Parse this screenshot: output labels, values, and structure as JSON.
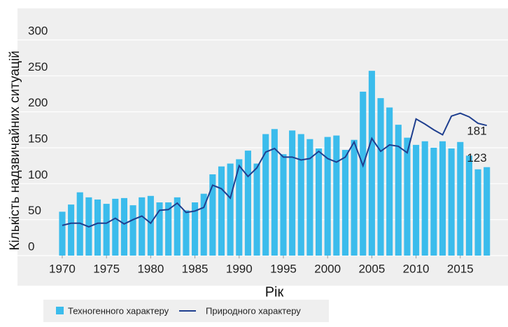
{
  "chart_data": {
    "type": "bar-line",
    "y_label": "Кількість надзвичайних ситуацій",
    "x_label": "Рік",
    "x": [
      1970,
      1971,
      1972,
      1973,
      1974,
      1975,
      1976,
      1977,
      1978,
      1979,
      1980,
      1981,
      1982,
      1983,
      1984,
      1985,
      1986,
      1987,
      1988,
      1989,
      1990,
      1991,
      1992,
      1993,
      1994,
      1995,
      1996,
      1997,
      1998,
      1999,
      2000,
      2001,
      2002,
      2003,
      2004,
      2005,
      2006,
      2007,
      2008,
      2009,
      2010,
      2011,
      2012,
      2013,
      2014,
      2015,
      2016,
      2017,
      2018
    ],
    "series": [
      {
        "name": "Техногенного характеру",
        "color": "#3bbcec",
        "kind": "bar",
        "values": [
          61,
          71,
          88,
          81,
          78,
          72,
          79,
          80,
          70,
          81,
          83,
          74,
          74,
          81,
          63,
          74,
          86,
          113,
          124,
          128,
          134,
          146,
          128,
          169,
          176,
          141,
          174,
          169,
          162,
          149,
          165,
          167,
          147,
          161,
          228,
          257,
          219,
          206,
          182,
          164,
          154,
          159,
          150,
          159,
          149,
          158,
          139,
          120,
          123
        ]
      },
      {
        "name": "Природного характеру",
        "color": "#1f3f8f",
        "kind": "line",
        "values": [
          42,
          45,
          45,
          40,
          45,
          45,
          52,
          44,
          50,
          55,
          45,
          63,
          64,
          73,
          60,
          62,
          67,
          98,
          93,
          80,
          125,
          110,
          122,
          144,
          149,
          137,
          137,
          133,
          135,
          145,
          135,
          130,
          137,
          158,
          125,
          163,
          145,
          154,
          152,
          143,
          190,
          183,
          175,
          168,
          194,
          198,
          193,
          184,
          181
        ]
      }
    ],
    "xlim": [
      1968.5,
      2020
    ],
    "xticks": [
      1970,
      1975,
      1980,
      1985,
      1990,
      1995,
      2000,
      2005,
      2010,
      2015
    ],
    "ylim": [
      0,
      300
    ],
    "yticks": [
      0,
      50,
      100,
      150,
      200,
      250,
      300
    ],
    "grid": true
  }
}
